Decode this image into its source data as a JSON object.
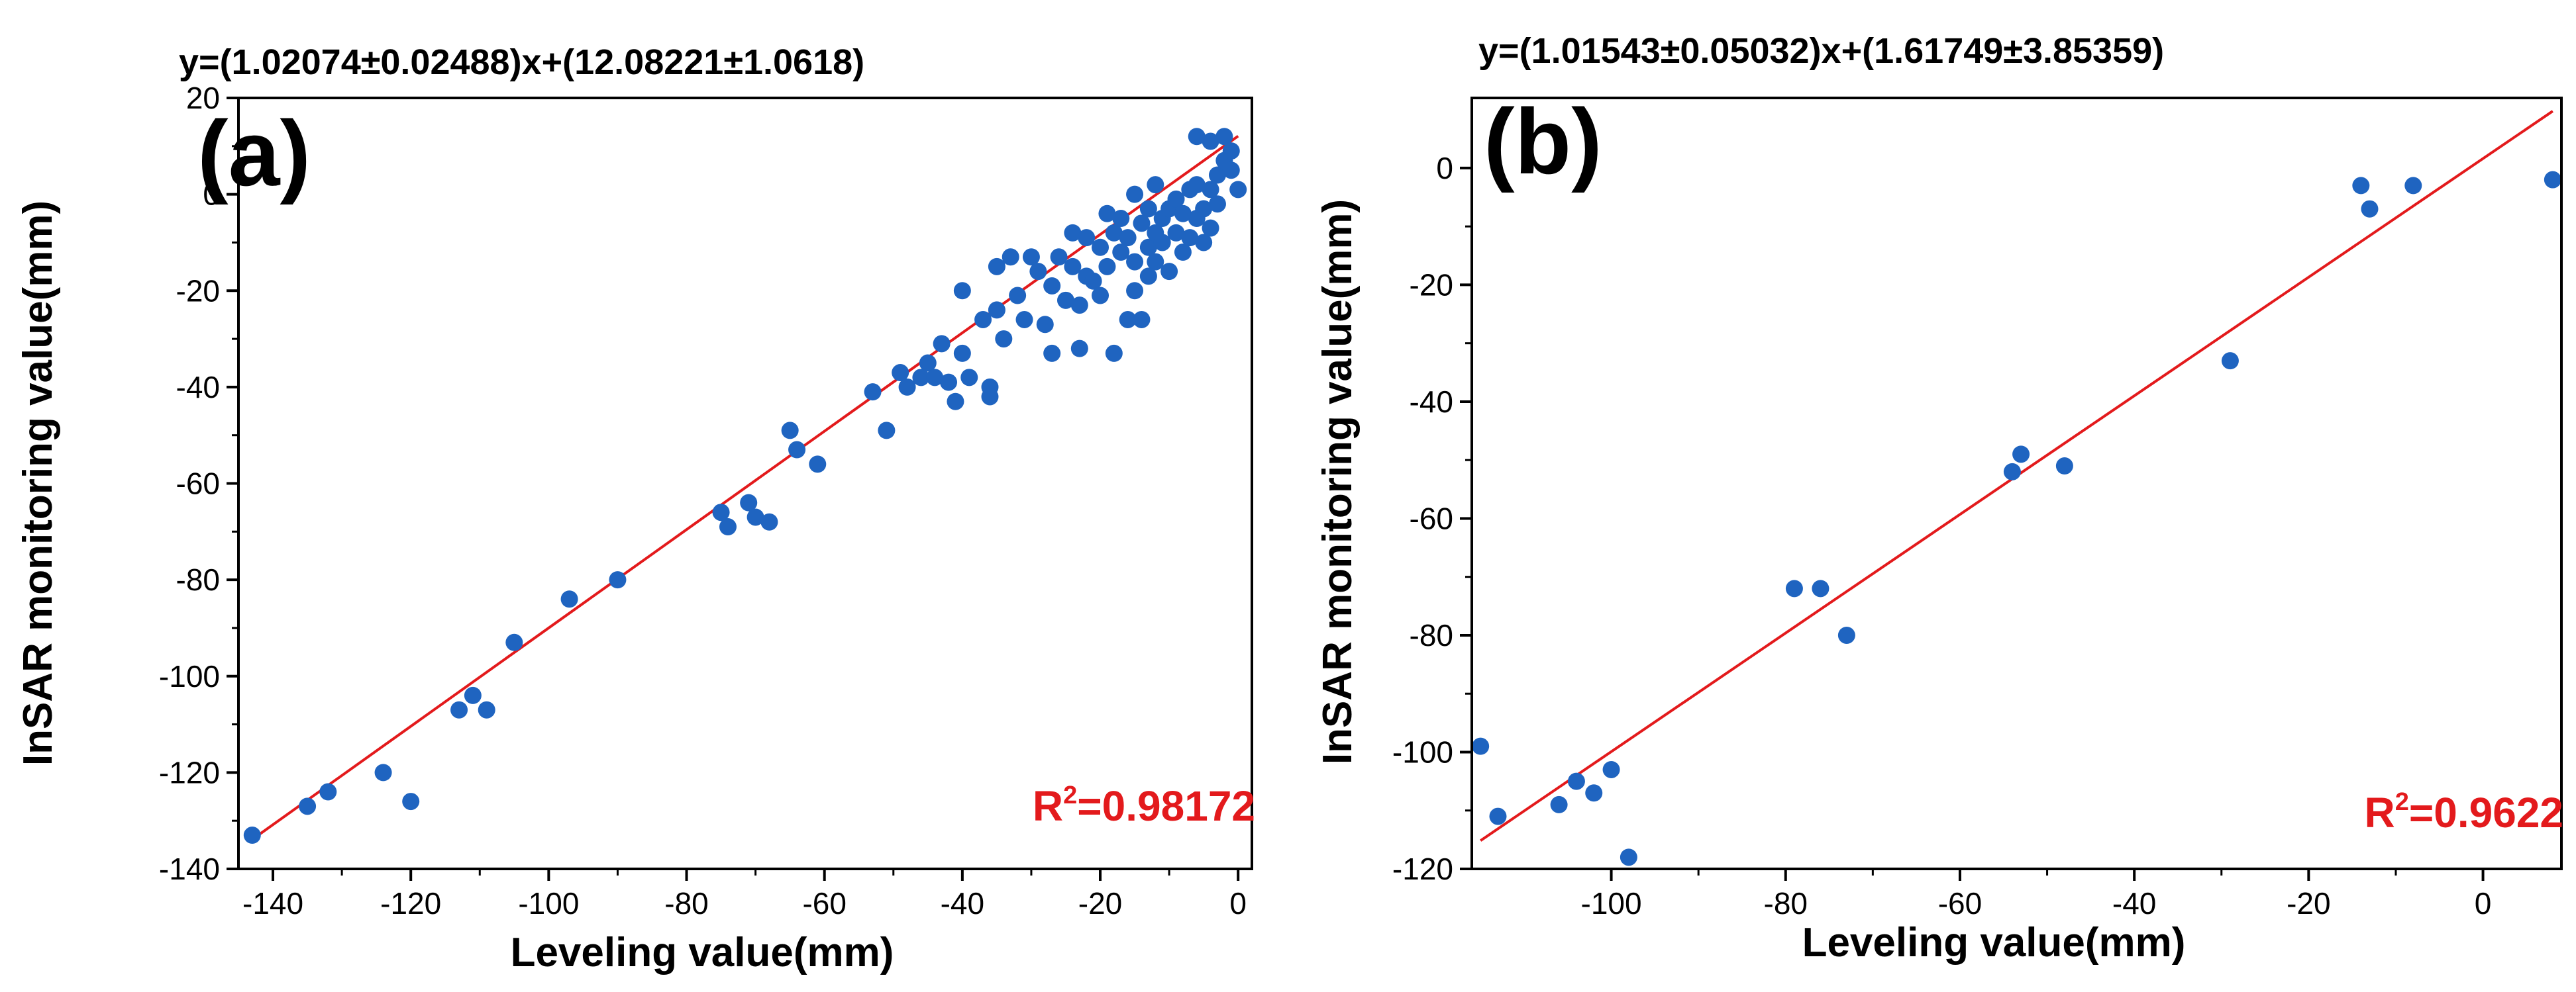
{
  "colors": {
    "points": "#1f64c0",
    "fit_line": "#e31a1c",
    "r2_text": "#e31a1c",
    "axes": "#000000"
  },
  "chart_data": [
    {
      "type": "scatter",
      "panel_label": "(a)",
      "equation": "y=(1.02074±0.02488)x+(12.08221±1.0618)",
      "r2_base": "R",
      "r2_sup": "2",
      "r2_value": "=0.98172",
      "xlabel": "Leveling value(mm)",
      "ylabel": "InSAR monitoring value(mm)",
      "xlim": [
        -145,
        2
      ],
      "ylim": [
        -140,
        20
      ],
      "xticks": [
        -140,
        -120,
        -100,
        -80,
        -60,
        -40,
        -20,
        0
      ],
      "yticks": [
        -140,
        -120,
        -100,
        -80,
        -60,
        -40,
        -20,
        0,
        20
      ],
      "fit": {
        "slope": 1.02074,
        "intercept": 12.08221,
        "x_range": [
          -143,
          0
        ]
      },
      "points": [
        [
          -143,
          -133
        ],
        [
          -135,
          -127
        ],
        [
          -132,
          -124
        ],
        [
          -124,
          -120
        ],
        [
          -120,
          -126
        ],
        [
          -113,
          -107
        ],
        [
          -111,
          -104
        ],
        [
          -109,
          -107
        ],
        [
          -105,
          -93
        ],
        [
          -97,
          -84
        ],
        [
          -90,
          -80
        ],
        [
          -75,
          -66
        ],
        [
          -74,
          -69
        ],
        [
          -71,
          -64
        ],
        [
          -70,
          -67
        ],
        [
          -68,
          -68
        ],
        [
          -65,
          -49
        ],
        [
          -64,
          -53
        ],
        [
          -61,
          -56
        ],
        [
          -53,
          -41
        ],
        [
          -51,
          -49
        ],
        [
          -49,
          -37
        ],
        [
          -48,
          -40
        ],
        [
          -46,
          -38
        ],
        [
          -45,
          -35
        ],
        [
          -44,
          -38
        ],
        [
          -43,
          -31
        ],
        [
          -42,
          -39
        ],
        [
          -41,
          -43
        ],
        [
          -40,
          -20
        ],
        [
          -40,
          -33
        ],
        [
          -39,
          -38
        ],
        [
          -37,
          -26
        ],
        [
          -36,
          -40
        ],
        [
          -36,
          -42
        ],
        [
          -35,
          -15
        ],
        [
          -35,
          -24
        ],
        [
          -34,
          -30
        ],
        [
          -33,
          -13
        ],
        [
          -32,
          -21
        ],
        [
          -31,
          -26
        ],
        [
          -30,
          -13
        ],
        [
          -29,
          -16
        ],
        [
          -28,
          -27
        ],
        [
          -27,
          -33
        ],
        [
          -27,
          -19
        ],
        [
          -26,
          -13
        ],
        [
          -25,
          -22
        ],
        [
          -24,
          -15
        ],
        [
          -24,
          -8
        ],
        [
          -23,
          -23
        ],
        [
          -22,
          -17
        ],
        [
          -22,
          -9
        ],
        [
          -21,
          -18
        ],
        [
          -20,
          -11
        ],
        [
          -20,
          -21
        ],
        [
          -19,
          -15
        ],
        [
          -18,
          -8
        ],
        [
          -18,
          -33
        ],
        [
          -17,
          -12
        ],
        [
          -17,
          -5
        ],
        [
          -16,
          -26
        ],
        [
          -16,
          -9
        ],
        [
          -15,
          -14
        ],
        [
          -15,
          -20
        ],
        [
          -14,
          -6
        ],
        [
          -14,
          -26
        ],
        [
          -13,
          -11
        ],
        [
          -13,
          -3
        ],
        [
          -12,
          -8
        ],
        [
          -12,
          -14
        ],
        [
          -11,
          -5
        ],
        [
          -11,
          -10
        ],
        [
          -10,
          -3
        ],
        [
          -10,
          -16
        ],
        [
          -9,
          -8
        ],
        [
          -9,
          -1
        ],
        [
          -8,
          -4
        ],
        [
          -8,
          -12
        ],
        [
          -7,
          1
        ],
        [
          -7,
          -9
        ],
        [
          -6,
          2
        ],
        [
          -6,
          -5
        ],
        [
          -5,
          -3
        ],
        [
          -5,
          -10
        ],
        [
          -4,
          1
        ],
        [
          -4,
          -7
        ],
        [
          -3,
          -2
        ],
        [
          -3,
          4
        ],
        [
          -2,
          7
        ],
        [
          -2,
          12
        ],
        [
          -1,
          5
        ],
        [
          -1,
          9
        ],
        [
          0,
          1
        ],
        [
          -6,
          12
        ],
        [
          -4,
          11
        ],
        [
          -23,
          -32
        ],
        [
          -19,
          -4
        ],
        [
          -15,
          0
        ],
        [
          -13,
          -17
        ],
        [
          -12,
          2
        ]
      ]
    },
    {
      "type": "scatter",
      "panel_label": "(b)",
      "equation": "y=(1.01543±0.05032)x+(1.61749±3.85359)",
      "r2_base": "R",
      "r2_sup": "2",
      "r2_value": "=0.9622",
      "xlabel": "Leveling value(mm)",
      "ylabel": "InSAR monitoring value(mm)",
      "xlim": [
        -116,
        9
      ],
      "ylim": [
        -120,
        12
      ],
      "xticks": [
        -100,
        -80,
        -60,
        -40,
        -20,
        0
      ],
      "yticks": [
        -120,
        -100,
        -80,
        -60,
        -40,
        -20,
        0
      ],
      "fit": {
        "slope": 1.01543,
        "intercept": 1.61749,
        "x_range": [
          -115,
          8
        ]
      },
      "points": [
        [
          -115,
          -99
        ],
        [
          -113,
          -111
        ],
        [
          -106,
          -109
        ],
        [
          -104,
          -105
        ],
        [
          -102,
          -107
        ],
        [
          -100,
          -103
        ],
        [
          -98,
          -118
        ],
        [
          -79,
          -72
        ],
        [
          -76,
          -72
        ],
        [
          -73,
          -80
        ],
        [
          -54,
          -52
        ],
        [
          -53,
          -49
        ],
        [
          -48,
          -51
        ],
        [
          -29,
          -33
        ],
        [
          -14,
          -3
        ],
        [
          -13,
          -7
        ],
        [
          -8,
          -3
        ],
        [
          8,
          -2
        ]
      ]
    }
  ]
}
